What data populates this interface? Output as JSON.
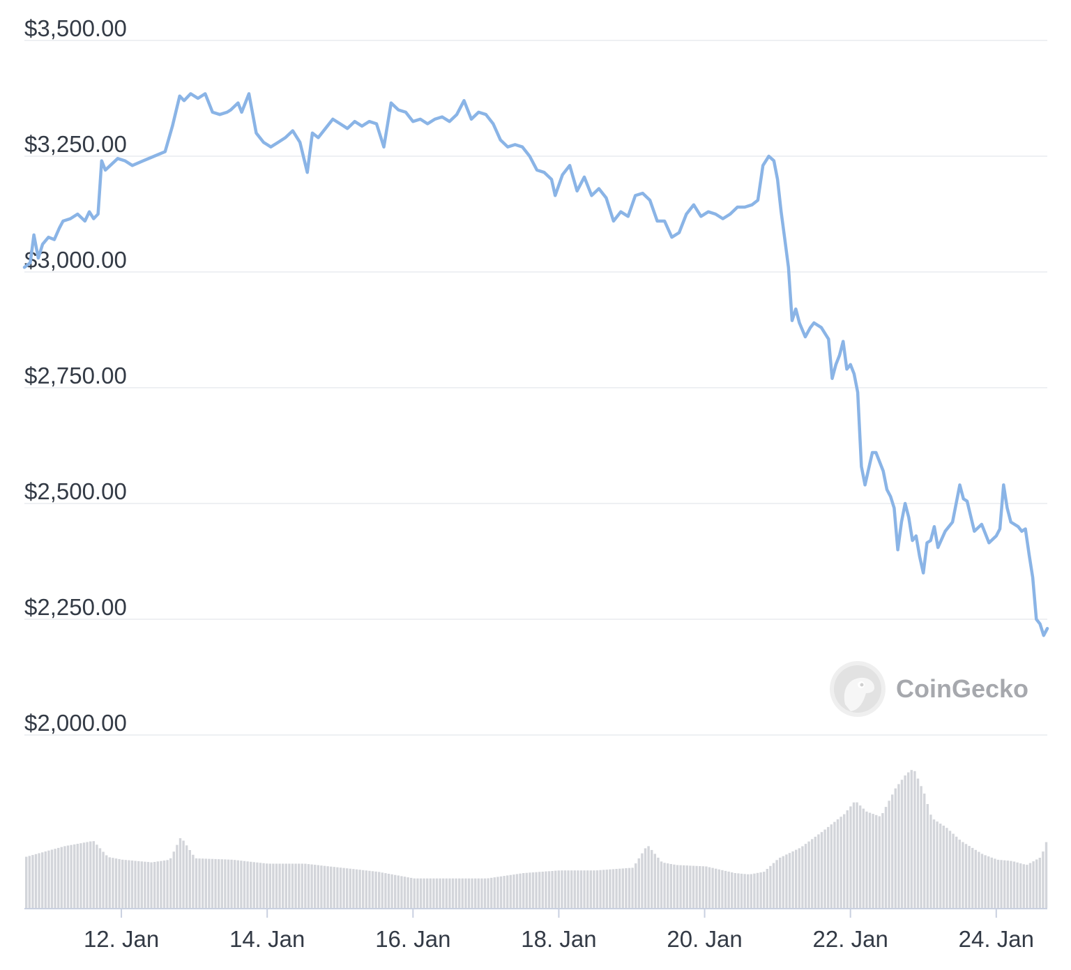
{
  "watermark": {
    "text": "CoinGecko",
    "icon": "gecko-logo-icon"
  },
  "chart_data": {
    "type": "line",
    "title": "",
    "xlabel": "",
    "ylabel": "",
    "ylim": [
      2000,
      3500
    ],
    "y_ticks": [
      3500,
      3250,
      3000,
      2750,
      2500,
      2250,
      2000
    ],
    "y_tick_labels": [
      "$3,500.00",
      "$3,250.00",
      "$3,000.00",
      "$2,750.00",
      "$2,500.00",
      "$2,250.00",
      "$2,000.00"
    ],
    "xlim": [
      10.67,
      24.7
    ],
    "x_ticks": [
      12,
      14,
      16,
      18,
      20,
      22,
      24
    ],
    "x_tick_labels": [
      "12. Jan",
      "14. Jan",
      "16. Jan",
      "18. Jan",
      "20. Jan",
      "22. Jan",
      "24. Jan"
    ],
    "grid": true,
    "colors": {
      "price": "#8ab4e6",
      "volume": "#d3d5da",
      "grid": "#eef0f3",
      "text": "#333a45"
    },
    "series": [
      {
        "kind": "price",
        "x": [
          10.67,
          10.75,
          10.8,
          10.86,
          10.92,
          11.0,
          11.08,
          11.15,
          11.2,
          11.3,
          11.4,
          11.5,
          11.56,
          11.62,
          11.68,
          11.73,
          11.78,
          11.95,
          12.05,
          12.15,
          12.3,
          12.45,
          12.6,
          12.7,
          12.8,
          12.86,
          12.95,
          13.05,
          13.15,
          13.25,
          13.35,
          13.45,
          13.5,
          13.6,
          13.65,
          13.75,
          13.85,
          13.95,
          14.05,
          14.15,
          14.25,
          14.35,
          14.45,
          14.55,
          14.62,
          14.7,
          14.8,
          14.9,
          15.0,
          15.1,
          15.2,
          15.3,
          15.4,
          15.5,
          15.6,
          15.7,
          15.8,
          15.9,
          16.0,
          16.1,
          16.2,
          16.3,
          16.4,
          16.5,
          16.6,
          16.7,
          16.8,
          16.9,
          17.0,
          17.1,
          17.2,
          17.3,
          17.4,
          17.5,
          17.6,
          17.7,
          17.8,
          17.9,
          17.95,
          18.05,
          18.15,
          18.25,
          18.35,
          18.45,
          18.55,
          18.65,
          18.75,
          18.85,
          18.95,
          19.05,
          19.15,
          19.25,
          19.35,
          19.45,
          19.55,
          19.65,
          19.75,
          19.85,
          19.95,
          20.05,
          20.15,
          20.25,
          20.35,
          20.45,
          20.55,
          20.65,
          20.73,
          20.8,
          20.88,
          20.95,
          21.0,
          21.05,
          21.1,
          21.15,
          21.2,
          21.25,
          21.3,
          21.38,
          21.45,
          21.5,
          21.6,
          21.7,
          21.75,
          21.8,
          21.85,
          21.9,
          21.95,
          22.0,
          22.05,
          22.1,
          22.15,
          22.2,
          22.25,
          22.3,
          22.35,
          22.45,
          22.5,
          22.55,
          22.6,
          22.65,
          22.7,
          22.75,
          22.8,
          22.85,
          22.9,
          22.95,
          23.0,
          23.05,
          23.1,
          23.15,
          23.2,
          23.3,
          23.4,
          23.45,
          23.5,
          23.55,
          23.6,
          23.7,
          23.8,
          23.9,
          24.0,
          24.05,
          24.1,
          24.15,
          24.2,
          24.3,
          24.35,
          24.4,
          24.45,
          24.5,
          24.55,
          24.6,
          24.65,
          24.7
        ],
        "y": [
          3010,
          3020,
          3080,
          3030,
          3060,
          3075,
          3070,
          3095,
          3110,
          3115,
          3125,
          3110,
          3130,
          3115,
          3125,
          3240,
          3220,
          3245,
          3240,
          3230,
          3240,
          3250,
          3260,
          3315,
          3380,
          3370,
          3385,
          3375,
          3385,
          3345,
          3340,
          3345,
          3350,
          3365,
          3345,
          3385,
          3300,
          3280,
          3270,
          3280,
          3290,
          3305,
          3280,
          3215,
          3300,
          3290,
          3310,
          3330,
          3320,
          3310,
          3325,
          3315,
          3325,
          3320,
          3270,
          3365,
          3350,
          3345,
          3325,
          3330,
          3320,
          3330,
          3335,
          3325,
          3340,
          3370,
          3330,
          3345,
          3340,
          3320,
          3285,
          3270,
          3275,
          3270,
          3250,
          3220,
          3215,
          3200,
          3165,
          3210,
          3230,
          3175,
          3205,
          3165,
          3180,
          3160,
          3110,
          3130,
          3120,
          3165,
          3170,
          3155,
          3110,
          3110,
          3075,
          3085,
          3125,
          3145,
          3120,
          3130,
          3125,
          3115,
          3125,
          3140,
          3140,
          3145,
          3155,
          3230,
          3250,
          3240,
          3200,
          3130,
          3070,
          3010,
          2895,
          2920,
          2890,
          2860,
          2880,
          2890,
          2880,
          2855,
          2770,
          2800,
          2820,
          2850,
          2790,
          2800,
          2780,
          2740,
          2580,
          2540,
          2575,
          2610,
          2610,
          2570,
          2530,
          2515,
          2490,
          2400,
          2460,
          2500,
          2470,
          2420,
          2430,
          2385,
          2350,
          2415,
          2420,
          2450,
          2405,
          2440,
          2460,
          2500,
          2540,
          2510,
          2505,
          2440,
          2455,
          2415,
          2430,
          2445,
          2540,
          2490,
          2460,
          2450,
          2440,
          2445,
          2390,
          2340,
          2250,
          2240,
          2215,
          2230
        ]
      },
      {
        "kind": "volume",
        "note_unit": "relative",
        "x": [
          10.67,
          11.2,
          11.6,
          11.8,
          12.0,
          12.4,
          12.65,
          12.8,
          13.0,
          13.5,
          14.0,
          14.5,
          15.0,
          15.5,
          16.0,
          16.5,
          17.0,
          17.5,
          18.0,
          18.5,
          19.0,
          19.2,
          19.4,
          19.6,
          20.0,
          20.4,
          20.6,
          20.8,
          21.0,
          21.3,
          21.6,
          21.9,
          22.05,
          22.2,
          22.4,
          22.6,
          22.75,
          22.85,
          23.0,
          23.1,
          23.3,
          23.5,
          23.8,
          24.0,
          24.2,
          24.4,
          24.6,
          24.7
        ],
        "y": [
          38,
          46,
          50,
          38,
          36,
          34,
          36,
          53,
          37,
          36,
          33,
          33,
          30,
          27,
          22,
          22,
          22,
          26,
          28,
          28,
          30,
          47,
          34,
          32,
          31,
          26,
          25,
          27,
          37,
          45,
          57,
          70,
          80,
          72,
          68,
          89,
          100,
          104,
          85,
          67,
          60,
          50,
          40,
          36,
          35,
          32,
          38,
          54
        ]
      }
    ]
  }
}
